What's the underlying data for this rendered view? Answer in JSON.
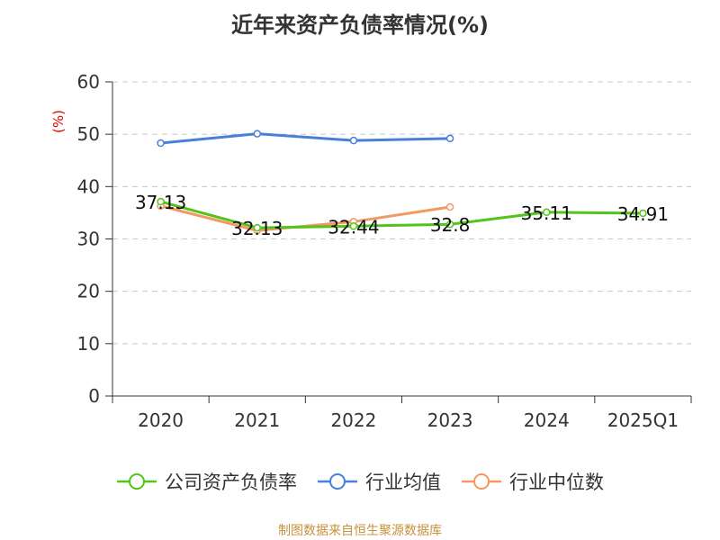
{
  "chart_data": {
    "type": "line",
    "title": "近年来资产负债率情况(%)",
    "ylabel": "(%)",
    "categories": [
      "2020",
      "2021",
      "2022",
      "2023",
      "2024",
      "2025Q1"
    ],
    "yticks": [
      "0",
      "10",
      "20",
      "30",
      "40",
      "50",
      "60"
    ],
    "ylim": [
      0,
      60
    ],
    "grid": true,
    "legend_position": "bottom",
    "series": [
      {
        "name": "公司资产负债率",
        "color": "#52c41a",
        "values": [
          37.13,
          32.13,
          32.44,
          32.8,
          35.11,
          34.91
        ],
        "labels": [
          "37.13",
          "32.13",
          "32.44",
          "32.8",
          "35.11",
          "34.91"
        ]
      },
      {
        "name": "行业均值",
        "color": "#4a7fd9",
        "values": [
          48.3,
          50.1,
          48.8,
          49.2,
          null,
          null
        ]
      },
      {
        "name": "行业中位数",
        "color": "#f39862",
        "values": [
          36.3,
          31.6,
          33.3,
          36.1,
          null,
          null
        ]
      }
    ]
  },
  "source": "制图数据来自恒生聚源数据库"
}
